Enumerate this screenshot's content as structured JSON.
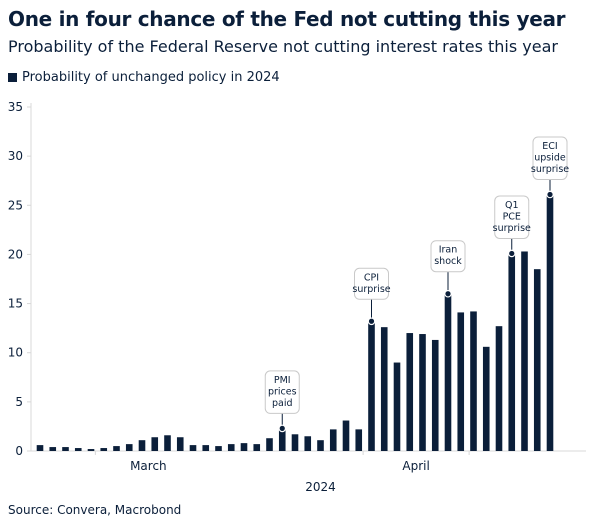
{
  "title": "One in four chance of the Fed not cutting this year",
  "subtitle": "Probability of the Federal Reserve not cutting interest rates this year",
  "source": "Source: Convera, Macrobond",
  "colors": {
    "bar": "#0b1f3a",
    "axis": "#d8d8d8",
    "text": "#0b1f3a"
  },
  "chart_data": {
    "type": "bar",
    "legend": [
      "Probability of unchanged policy in 2024"
    ],
    "ylim": [
      0,
      35
    ],
    "yticks": [
      0,
      5,
      10,
      15,
      20,
      25,
      30,
      35
    ],
    "xlabel": "2024",
    "month_labels": [
      {
        "label": "March",
        "index": 8.5
      },
      {
        "label": "April",
        "index": 29.5
      }
    ],
    "grid": false,
    "series": [
      {
        "name": "Probability of unchanged policy in 2024",
        "values": [
          0.6,
          0.4,
          0.4,
          0.3,
          0.2,
          0.3,
          0.5,
          0.7,
          1.1,
          1.4,
          1.6,
          1.4,
          0.6,
          0.6,
          0.5,
          0.7,
          0.8,
          0.7,
          1.3,
          2.3,
          1.7,
          1.5,
          1.1,
          2.2,
          3.1,
          2.2,
          13.2,
          12.6,
          9.0,
          12.0,
          11.9,
          11.3,
          16.0,
          14.1,
          14.2,
          10.6,
          12.7,
          20.1,
          20.3,
          18.5,
          26.1
        ]
      }
    ],
    "annotations": [
      {
        "index": 19,
        "value": 2.3,
        "lines": [
          "PMI",
          "prices",
          "paid"
        ]
      },
      {
        "index": 26,
        "value": 13.2,
        "lines": [
          "CPI",
          "surprise"
        ]
      },
      {
        "index": 32,
        "value": 16.0,
        "lines": [
          "Iran",
          "shock"
        ]
      },
      {
        "index": 37,
        "value": 20.1,
        "lines": [
          "Q1",
          "PCE",
          "surprise"
        ]
      },
      {
        "index": 40,
        "value": 26.1,
        "lines": [
          "ECI",
          "upside",
          "surprise"
        ]
      }
    ]
  }
}
